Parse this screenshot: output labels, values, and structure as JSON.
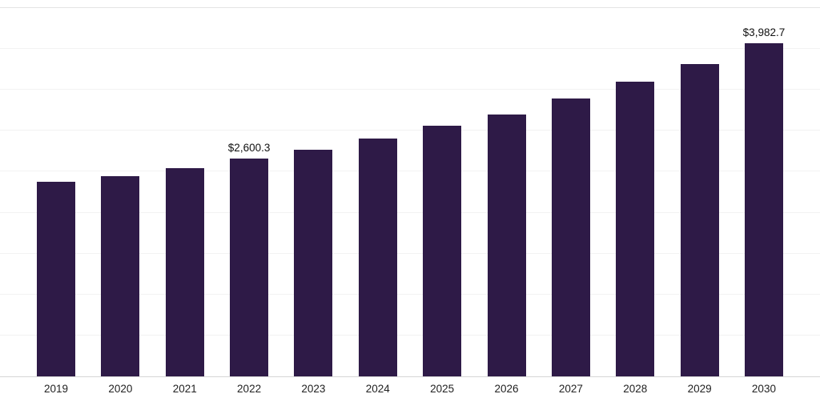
{
  "chart_data": {
    "type": "bar",
    "title": "",
    "xlabel": "",
    "ylabel": "",
    "categories": [
      "2019",
      "2020",
      "2021",
      "2022",
      "2023",
      "2024",
      "2025",
      "2026",
      "2027",
      "2028",
      "2029",
      "2030"
    ],
    "values": [
      2320,
      2395,
      2490,
      2600.3,
      2710,
      2840,
      2990,
      3130,
      3320,
      3520,
      3730,
      3982.7
    ],
    "labeled_points": [
      {
        "category": "2022",
        "label": "$2,600.3"
      },
      {
        "category": "2030",
        "label": "$3,982.7"
      }
    ],
    "ylim": [
      0,
      4400
    ],
    "grid": true,
    "grid_divisions": 9,
    "legend": "none",
    "bar_color": "#2e1a47",
    "gridline_color": "#f2f2f2",
    "axis_line_color": "#d6d6d6"
  }
}
